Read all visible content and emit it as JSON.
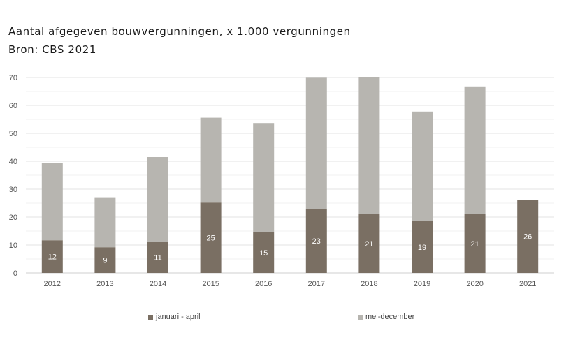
{
  "title": "Aantal afgegeven bouwvergunningen, x 1.000 vergunningen",
  "subtitle": "Bron: CBS 2021",
  "chart_data": {
    "type": "bar",
    "stacked": true,
    "categories": [
      "2012",
      "2013",
      "2014",
      "2015",
      "2016",
      "2017",
      "2018",
      "2019",
      "2020",
      "2021"
    ],
    "series": [
      {
        "name": "januari - april",
        "color": "#7a6f63",
        "values": [
          11.7,
          9.2,
          11.2,
          25.2,
          14.5,
          22.9,
          21.1,
          18.6,
          21.1,
          26.2
        ],
        "labels": [
          "12",
          "9",
          "11",
          "25",
          "15",
          "23",
          "21",
          "19",
          "21",
          "26"
        ]
      },
      {
        "name": "mei-december",
        "color": "#b7b5b0",
        "values": [
          27.7,
          17.9,
          30.3,
          30.4,
          39.2,
          47.0,
          48.9,
          39.2,
          45.7,
          null
        ]
      }
    ],
    "ylim": [
      0,
      70
    ],
    "yticks": [
      0,
      10,
      20,
      30,
      40,
      50,
      60,
      70
    ],
    "grid": true,
    "legend": "bottom"
  }
}
